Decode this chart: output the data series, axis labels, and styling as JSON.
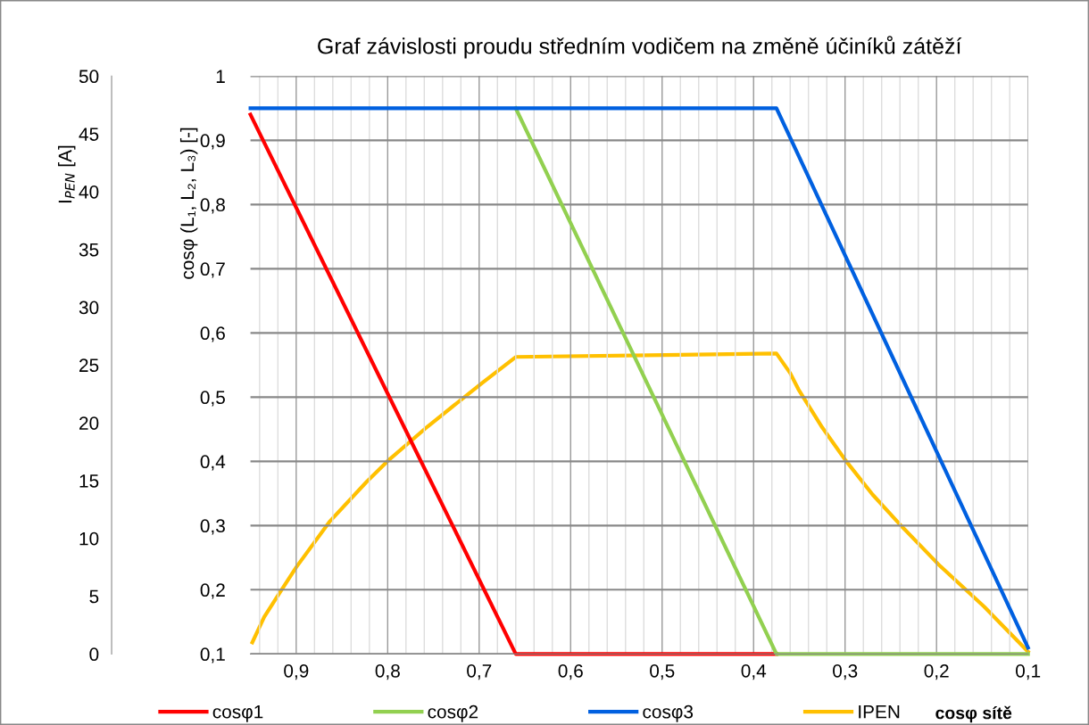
{
  "chart_data": {
    "type": "line",
    "title": "Graf závislosti proudu středním vodičem na změně účiníků zátěží",
    "xlabel": "cosφ sítě",
    "ylabel": "cosφ (L₁, L₂, L₃) [-]",
    "y2label": "I$_{PEN}$ [A]",
    "xlim": [
      0.95,
      0.1
    ],
    "xticks": [
      {
        "value": 0.9,
        "label": "0,9"
      },
      {
        "value": 0.8,
        "label": "0,8"
      },
      {
        "value": 0.7,
        "label": "0,7"
      },
      {
        "value": 0.6,
        "label": "0,6"
      },
      {
        "value": 0.5,
        "label": "0,5"
      },
      {
        "value": 0.4,
        "label": "0,4"
      },
      {
        "value": 0.3,
        "label": "0,3"
      },
      {
        "value": 0.2,
        "label": "0,2"
      },
      {
        "value": 0.1,
        "label": "0,1"
      }
    ],
    "ylim": [
      0.1,
      1
    ],
    "yticks": [
      {
        "value": 0.1,
        "label": "0,1"
      },
      {
        "value": 0.2,
        "label": "0,2"
      },
      {
        "value": 0.3,
        "label": "0,3"
      },
      {
        "value": 0.4,
        "label": "0,4"
      },
      {
        "value": 0.5,
        "label": "0,5"
      },
      {
        "value": 0.6,
        "label": "0,6"
      },
      {
        "value": 0.7,
        "label": "0,7"
      },
      {
        "value": 0.8,
        "label": "0,8"
      },
      {
        "value": 0.9,
        "label": "0,9"
      },
      1
    ],
    "y2lim": [
      0,
      50
    ],
    "y2ticks": [
      0,
      5,
      10,
      15,
      20,
      25,
      30,
      35,
      40,
      45,
      50
    ],
    "grid": true,
    "legend": "bottom",
    "marker": "none",
    "line_style": "solid",
    "series": [
      {
        "name": "cosφ1",
        "color": "#ff0000",
        "x": [
          0.95,
          0.66,
          0.375
        ],
        "values": [
          0.94,
          0.1,
          0.1
        ]
      },
      {
        "name": "cosφ2",
        "color": "#92d050",
        "x": [
          0.66,
          0.375,
          0.1
        ],
        "values": [
          0.95,
          0.1,
          0.1
        ]
      },
      {
        "name": "cosφ3",
        "color": "#0060e0",
        "x": [
          0.95,
          0.375,
          0.1
        ],
        "values": [
          0.95,
          0.95,
          0.11
        ]
      },
      {
        "name": "IPEN",
        "color": "#ffc000",
        "axis": "y2",
        "x": [
          0.948,
          0.935,
          0.918,
          0.9,
          0.863,
          0.823,
          0.8,
          0.756,
          0.696,
          0.66,
          0.375,
          0.36,
          0.351,
          0.325,
          0.299,
          0.27,
          0.24,
          0.196,
          0.148,
          0.1
        ],
        "values": [
          1.0,
          3.2,
          5.3,
          7.5,
          11.5,
          14.9,
          16.7,
          19.7,
          23.5,
          25.7,
          26.0,
          24.3,
          22.9,
          19.6,
          16.7,
          13.8,
          11.2,
          7.6,
          4.1,
          0.2
        ]
      }
    ]
  }
}
